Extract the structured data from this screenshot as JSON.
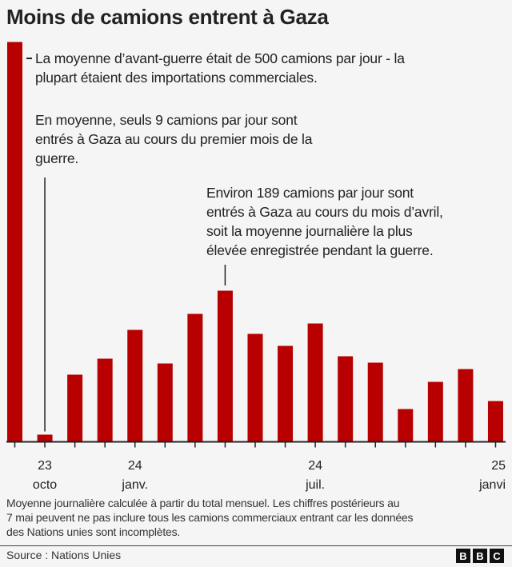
{
  "title": "Moins de camions entrent à Gaza",
  "annotations": {
    "prewar": [
      "La moyenne d’avant-guerre était de 500 camions par jour - la",
      "plupart étaient des importations commerciales."
    ],
    "first_month": [
      "En moyenne, seuls 9 camions par jour sont",
      "entrés à Gaza au cours du premier mois de la",
      "guerre."
    ],
    "april": [
      "Environ 189 camions par jour sont",
      "entrés à Gaza au cours du mois d’avril,",
      "soit la moyenne journalière la plus",
      "élevée enregistrée pendant la guerre."
    ]
  },
  "chart_data": {
    "type": "bar",
    "title": "Moins de camions entrent à Gaza",
    "xlabel": "",
    "ylabel": "",
    "ylim": [
      0,
      500
    ],
    "grid": false,
    "bar_color": "#b80000",
    "categories": [
      "Avant-guerre",
      "2023-10",
      "2023-11",
      "2023-12",
      "2024-01",
      "2024-02",
      "2024-03",
      "2024-04",
      "2024-05",
      "2024-06",
      "2024-07",
      "2024-08",
      "2024-09",
      "2024-10",
      "2024-11",
      "2024-12",
      "2025-01"
    ],
    "values": [
      500,
      9,
      84,
      104,
      140,
      98,
      160,
      189,
      135,
      120,
      148,
      107,
      99,
      41,
      75,
      91,
      51
    ],
    "tick_labels": [
      {
        "index": 1,
        "year": "23",
        "month": "octo"
      },
      {
        "index": 4,
        "year": "24",
        "month": "janv."
      },
      {
        "index": 10,
        "year": "24",
        "month": "juil."
      },
      {
        "index": 16,
        "year": "25",
        "month": "janvi"
      }
    ]
  },
  "note": [
    "Moyenne journalière calculée à partir du total mensuel. Les chiffres postérieurs au",
    "7 mai peuvent ne pas inclure tous les camions commerciaux entrant car les données",
    "des Nations unies sont incomplètes."
  ],
  "source": "Source : Nations Unies",
  "logo": [
    "B",
    "B",
    "C"
  ]
}
